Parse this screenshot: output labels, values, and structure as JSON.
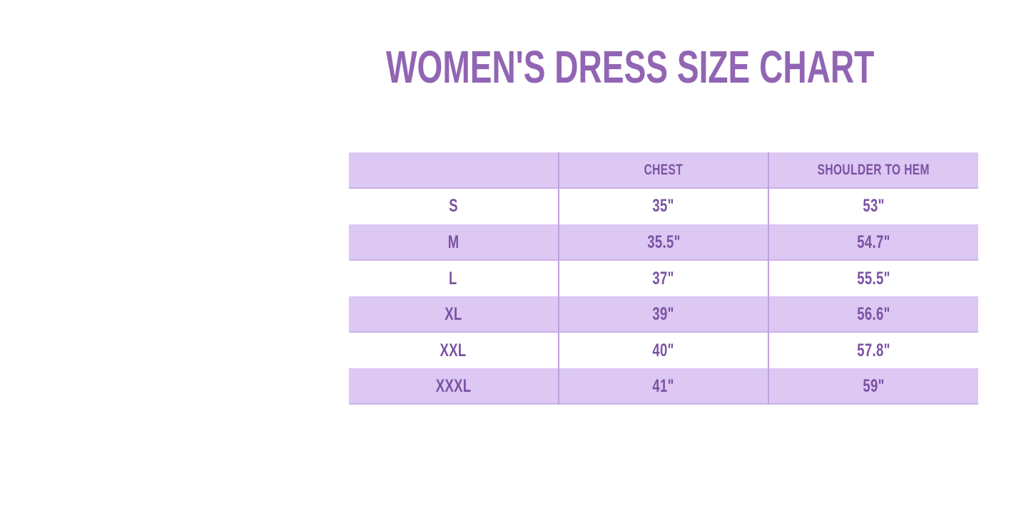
{
  "title": {
    "text": "WOMEN'S DRESS SIZE CHART"
  },
  "colors": {
    "background": "#ffffff",
    "title_text": "#9165b3",
    "table_text": "#7a52a3",
    "row_fill": "#ddc7f3",
    "row_edge_line": "#ccb0e8",
    "column_divider": "#bfa2dd"
  },
  "chart_data": {
    "type": "table",
    "title": "WOMEN'S DRESS SIZE CHART",
    "columns": [
      "",
      "CHEST",
      "SHOULDER TO HEM"
    ],
    "rows": [
      [
        "S",
        "35\"",
        "53\""
      ],
      [
        "M",
        "35.5\"",
        "54.7\""
      ],
      [
        "L",
        "37\"",
        "55.5\""
      ],
      [
        "XL",
        "39\"",
        "56.6\""
      ],
      [
        "XXL",
        "40\"",
        "57.8\""
      ],
      [
        "XXXL",
        "41\"",
        "59\""
      ]
    ],
    "layout": {
      "alignment": "center",
      "striped": true,
      "striped_rows": [
        "header",
        "M",
        "XL",
        "XXXL"
      ],
      "column_widths": "equal thirds",
      "grid": "vertical dividers only"
    }
  }
}
